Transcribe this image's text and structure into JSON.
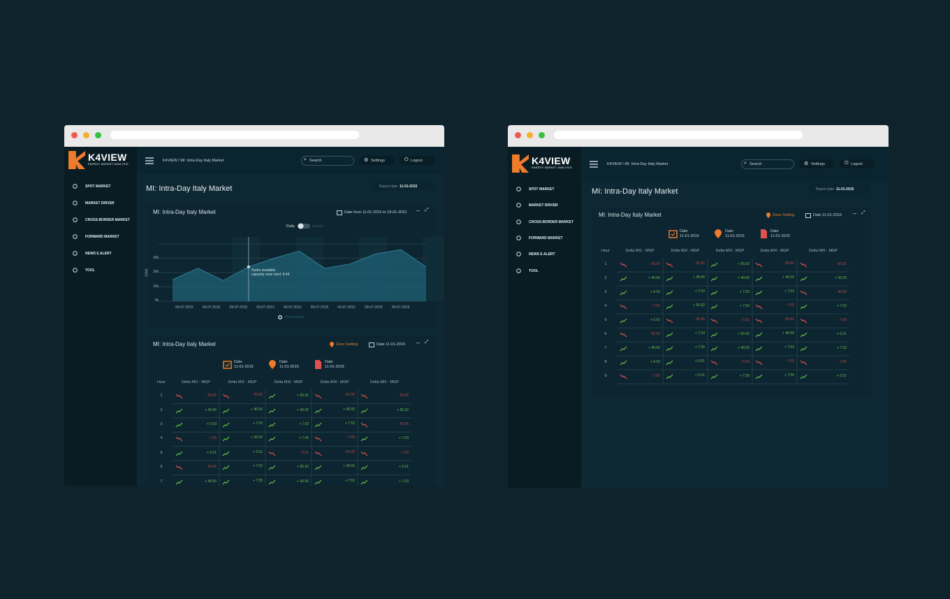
{
  "app": {
    "logo": "K4VIEW",
    "tagline": "ENERGY MARKET ANALYSIS",
    "breadcrumb": "K4VIEW / MI: Intra-Day Italy Market",
    "search": "Search",
    "settings": "Settings",
    "logout": "Logout",
    "nav": [
      "SPOT MARKET",
      "MARKET DRIVER",
      "CROSS-BORDER MARKET",
      "FORWARD MARKET",
      "NEWS E ALERT",
      "TOOL"
    ],
    "page_title": "MI: Intra-Day Italy Market",
    "report_date_label": "Report date",
    "report_date": "11-01-2015"
  },
  "chart_panel": {
    "title": "MI: Intra-Day Italy Market",
    "date_range": "Date from 11-01-2015 to 19-01-2015",
    "toggle": [
      "Daily",
      "Hourly"
    ],
    "y_unit": "GWh",
    "ylim": [
      0,
      40
    ],
    "yticks": [
      {
        "value": 0,
        "label": "0k"
      },
      {
        "value": 10,
        "label": "10k"
      },
      {
        "value": 20,
        "label": "20k"
      },
      {
        "value": 30,
        "label": "30k"
      }
    ],
    "x_labels": [
      "09-07-2015",
      "09-07-2015",
      "09-07-2015",
      "09-07-2015",
      "09-07-2015",
      "09-07-2015",
      "09-07-2015",
      "09-07-2015",
      "09-07-2015"
    ],
    "values": [
      15,
      23,
      14.5,
      24,
      30,
      35,
      23,
      26,
      33,
      36,
      24
    ],
    "color": "#1f6074",
    "tooltip": [
      "Hydro available",
      "capacity zone nord: 8,44"
    ],
    "legend": "Photovoltaic"
  },
  "table_panel": {
    "title": "MI: Intra-Day Italy Market",
    "zone_setting": "Zone Setting",
    "date": "Date 11-01-2015",
    "summary": [
      {
        "label": "Date",
        "value": "11-01-2015"
      },
      {
        "label": "Date",
        "value": "11-01-2015"
      },
      {
        "label": "Date",
        "value": "11-01-2015"
      }
    ],
    "header": [
      "Hour",
      "Delta MI1 - MGP",
      "Delta MI2 - MGP",
      "Delta MI3 - MGP",
      "Delta MI4 - MGP",
      "Delta MI5 - MGP"
    ],
    "rows_left": [
      [
        1,
        "- 55.92",
        "- 55.92",
        "+ 55.92",
        "- 55.92",
        "- 55.92"
      ],
      [
        2,
        "+ 40.55",
        "+ 40.55",
        "+ 40.55",
        "+ 40.55",
        "+ 55.92"
      ],
      [
        3,
        "+ 6.53",
        "+ 7.53",
        "+ 7.53",
        "+ 7.53",
        "- 40.55"
      ],
      [
        4,
        "- 7.55",
        "+ 55.92",
        "+ 7.55",
        "- 7.55",
        "+ 7.53"
      ],
      [
        5,
        "+ 5.51",
        "+ 5.51",
        "- 5.51",
        "- 55.92",
        "- 7.55"
      ],
      [
        6,
        "- 55.92",
        "+ 7.53",
        "+ 55.92",
        "+ 40.55",
        "+ 5.51"
      ],
      [
        7,
        "+ 40.55",
        "+ 7.55",
        "+ 40.55",
        "+ 7.53",
        "+ 7.53"
      ]
    ],
    "rows_right": [
      [
        1,
        "- 55.92",
        "- 55.92",
        "+ 55.92",
        "- 55.92",
        "- 55.92"
      ],
      [
        2,
        "+ 40.55",
        "+ 40.55",
        "+ 40.55",
        "+ 40.55",
        "+ 55.92"
      ],
      [
        3,
        "+ 6.53",
        "+ 7.53",
        "+ 7.53",
        "+ 7.53",
        "- 40.55"
      ],
      [
        4,
        "- 7.55",
        "+ 55.92",
        "+ 7.55",
        "- 7.55",
        "+ 7.53"
      ],
      [
        5,
        "+ 5.51",
        "- 40.55",
        "- 5.51",
        "- 55.92",
        "- 7.55"
      ],
      [
        6,
        "- 55.92",
        "+ 7.53",
        "+ 55.92",
        "+ 40.55",
        "+ 5.51"
      ],
      [
        7,
        "+ 40.55",
        "+ 7.55",
        "+ 40.55",
        "+ 7.53",
        "+ 7.53"
      ],
      [
        8,
        "+ 6.53",
        "+ 5.51",
        "- 5.53",
        "- 7.55",
        "- 7.55"
      ],
      [
        9,
        "- 7.55",
        "+ 5.51",
        "+ 7.55",
        "+ 7.55",
        "+ 5.51"
      ]
    ]
  }
}
